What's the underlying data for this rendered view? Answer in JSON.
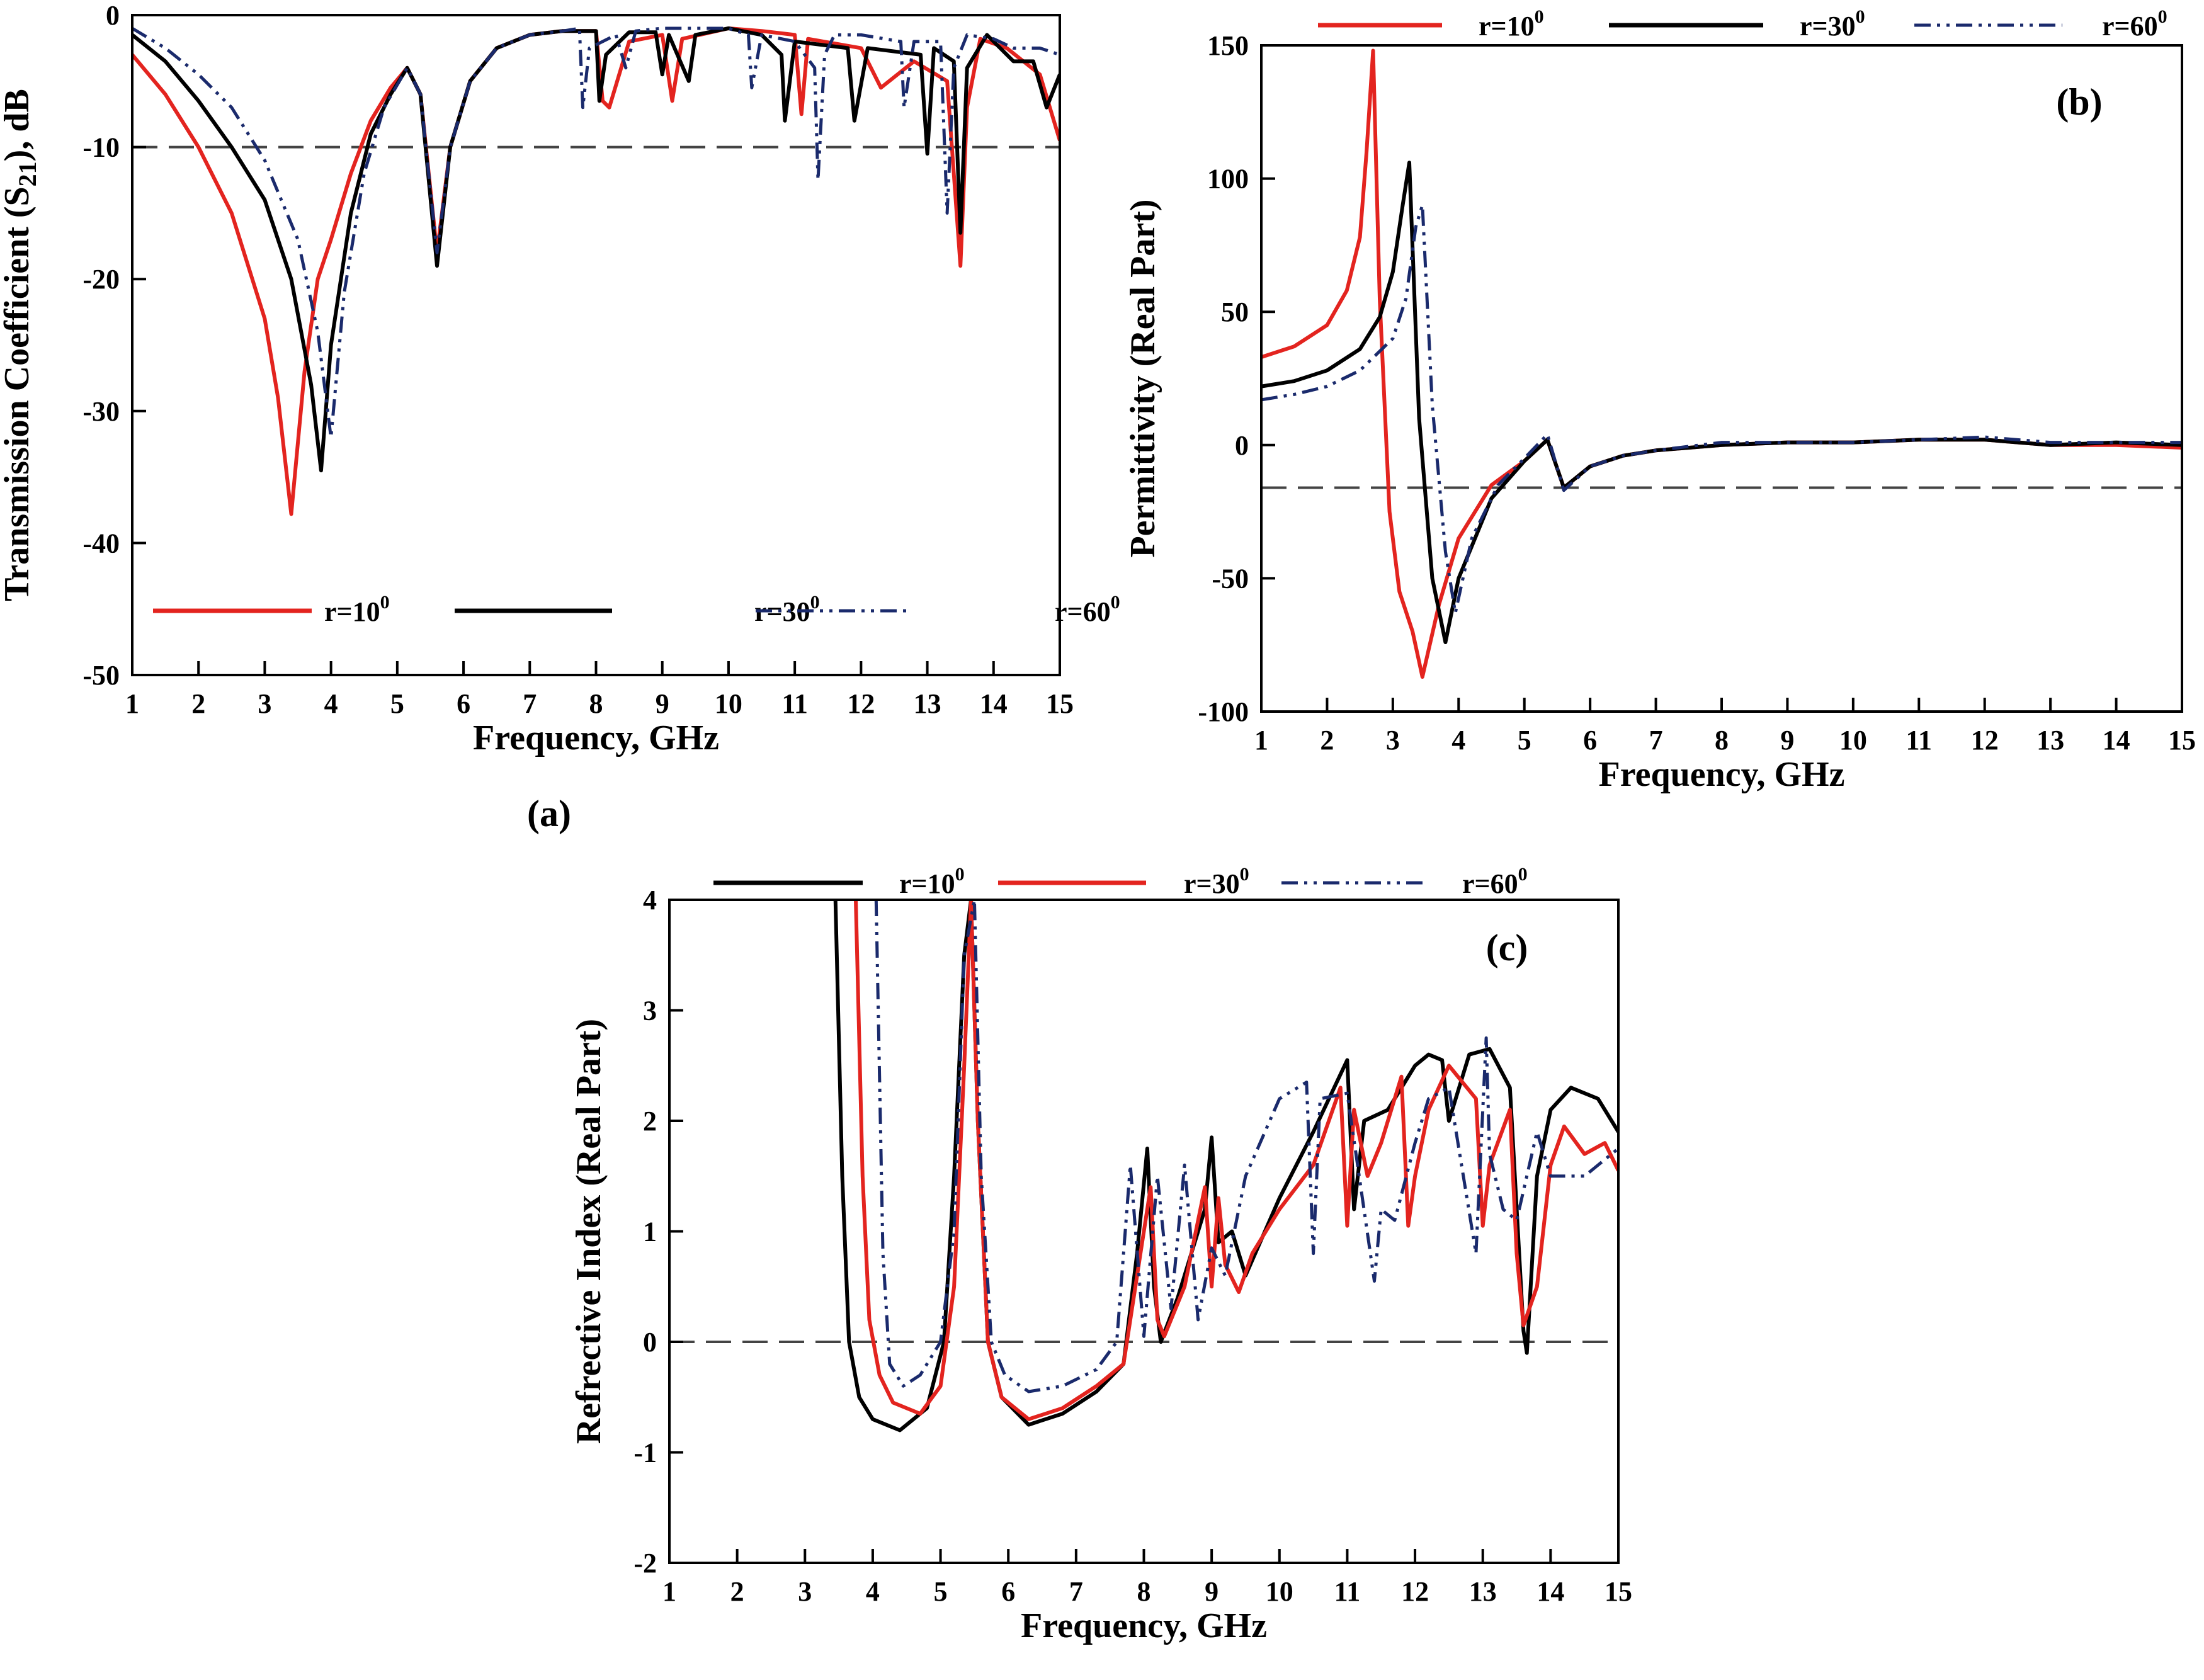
{
  "chart_data": [
    {
      "id": "a",
      "type": "line",
      "panel_label": "(a)",
      "xlabel": "Frequency, GHz",
      "ylabel_main": "Transmission Coefficient (S",
      "ylabel_sub": "21",
      "ylabel_tail": "), dB",
      "xlim": [
        1,
        15
      ],
      "ylim": [
        -50,
        0
      ],
      "xticks": [
        1,
        2,
        3,
        4,
        5,
        6,
        7,
        8,
        9,
        10,
        11,
        12,
        13,
        14,
        15
      ],
      "yticks": [
        0,
        -10,
        -20,
        -30,
        -40,
        -50
      ],
      "reference_line": -10,
      "legend_position": "bottom",
      "series": [
        {
          "name": "r=10",
          "sup": "0",
          "color": "#e3241f",
          "dash": "solid",
          "x": [
            1,
            1.5,
            2,
            2.5,
            3,
            3.2,
            3.4,
            3.6,
            3.8,
            4,
            4.3,
            4.6,
            4.9,
            5.15,
            5.35,
            5.6,
            5.8,
            6.1,
            6.5,
            7,
            7.5,
            8,
            8.1,
            8.2,
            8.5,
            9,
            9.15,
            9.3,
            10,
            10.5,
            11,
            11.1,
            11.2,
            12,
            12.3,
            12.8,
            13.3,
            13.5,
            13.6,
            13.8,
            14.2,
            14.7,
            15
          ],
          "y": [
            -3,
            -6,
            -10,
            -15,
            -23,
            -29,
            -37.8,
            -27,
            -20,
            -17,
            -12,
            -8,
            -5.5,
            -4,
            -6,
            -18,
            -10,
            -5,
            -2.5,
            -1.5,
            -1.2,
            -1.2,
            -6.5,
            -7,
            -2,
            -1.5,
            -6.5,
            -1.8,
            -1,
            -1.2,
            -1.5,
            -7.5,
            -1.8,
            -2.5,
            -5.5,
            -3.5,
            -5,
            -19,
            -7,
            -1.8,
            -2.5,
            -4.5,
            -9.5
          ]
        },
        {
          "name": "r=30",
          "sup": "0",
          "color": "#000000",
          "dash": "solid",
          "x": [
            1,
            1.5,
            2,
            2.5,
            3,
            3.4,
            3.7,
            3.85,
            4,
            4.3,
            4.6,
            4.9,
            5.15,
            5.35,
            5.6,
            5.8,
            6.1,
            6.5,
            7,
            7.5,
            8,
            8.05,
            8.15,
            8.5,
            8.9,
            9,
            9.1,
            9.4,
            9.5,
            10,
            10.5,
            10.8,
            10.85,
            11,
            11.8,
            11.9,
            12.1,
            12.9,
            13,
            13.1,
            13.4,
            13.5,
            13.6,
            13.9,
            14.3,
            14.6,
            14.8,
            15
          ],
          "y": [
            -1.5,
            -3.5,
            -6.5,
            -10,
            -14,
            -20,
            -28,
            -34.5,
            -25,
            -15,
            -9,
            -6,
            -4,
            -6,
            -19,
            -10,
            -5,
            -2.5,
            -1.5,
            -1.2,
            -1.2,
            -6.5,
            -3,
            -1.3,
            -1.3,
            -4.5,
            -1.5,
            -5,
            -1.5,
            -1,
            -1.5,
            -3,
            -8,
            -2,
            -2.5,
            -8,
            -2.5,
            -3,
            -10.5,
            -2.5,
            -3.5,
            -16.5,
            -4,
            -1.5,
            -3.5,
            -3.5,
            -7,
            -4.5
          ]
        },
        {
          "name": "r=60",
          "sup": "0",
          "color": "#1a2a6c",
          "dash": "dashdot",
          "x": [
            1,
            1.5,
            2,
            2.5,
            3,
            3.5,
            3.8,
            4,
            4.2,
            4.5,
            4.8,
            5.15,
            5.35,
            5.6,
            5.8,
            6.1,
            6.5,
            7,
            7.5,
            7.75,
            7.8,
            7.9,
            8.3,
            8.45,
            8.6,
            9,
            10,
            10.3,
            10.35,
            10.5,
            11,
            11.3,
            11.35,
            11.45,
            11.6,
            12,
            12.6,
            12.65,
            12.8,
            13.2,
            13.3,
            13.4,
            13.6,
            14,
            14.3,
            14.7,
            15
          ],
          "y": [
            -1,
            -2.5,
            -4.5,
            -7,
            -11,
            -17,
            -24,
            -32,
            -21,
            -12,
            -7,
            -4,
            -6,
            -18,
            -10,
            -5,
            -2.5,
            -1.5,
            -1.2,
            -1,
            -7,
            -2.5,
            -1.5,
            -4,
            -1.2,
            -1,
            -1,
            -1.5,
            -5.5,
            -1.5,
            -2,
            -4,
            -12.5,
            -3,
            -1.5,
            -1.5,
            -2,
            -7,
            -2,
            -2,
            -15,
            -4,
            -1.5,
            -1.8,
            -2.5,
            -2.5,
            -3
          ]
        }
      ]
    },
    {
      "id": "b",
      "type": "line",
      "panel_label": "(b)",
      "xlabel": "Frequency, GHz",
      "ylabel_main": "Permittivity (Real Part)",
      "xlim": [
        1,
        15
      ],
      "ylim": [
        -100,
        150
      ],
      "xticks": [
        1,
        2,
        3,
        4,
        5,
        6,
        7,
        8,
        9,
        10,
        11,
        12,
        13,
        14,
        15
      ],
      "yticks": [
        150,
        100,
        50,
        0,
        -50,
        -100
      ],
      "reference_line": -16,
      "legend_position": "top",
      "series": [
        {
          "name": "r=10",
          "sup": "0",
          "color": "#e3241f",
          "dash": "solid",
          "x": [
            1,
            1.5,
            2,
            2.3,
            2.5,
            2.6,
            2.7,
            2.8,
            2.95,
            3.1,
            3.3,
            3.45,
            3.7,
            4,
            4.5,
            5,
            5.35,
            5.6,
            6,
            6.5,
            7,
            8,
            9,
            10,
            11,
            12,
            13,
            14,
            15
          ],
          "y": [
            33,
            37,
            45,
            58,
            78,
            110,
            148,
            55,
            -25,
            -55,
            -70,
            -87,
            -60,
            -35,
            -15,
            -6,
            2,
            -16,
            -8,
            -4,
            -2,
            0,
            1,
            1,
            2,
            2,
            0,
            0,
            -1
          ]
        },
        {
          "name": "r=30",
          "sup": "0",
          "color": "#000000",
          "dash": "solid",
          "x": [
            1,
            1.5,
            2,
            2.5,
            2.8,
            3,
            3.15,
            3.25,
            3.4,
            3.6,
            3.8,
            4,
            4.5,
            5,
            5.35,
            5.6,
            6,
            6.5,
            7,
            8,
            9,
            10,
            11,
            12,
            13,
            14,
            15
          ],
          "y": [
            22,
            24,
            28,
            36,
            48,
            65,
            90,
            106,
            10,
            -50,
            -74,
            -50,
            -20,
            -6,
            2,
            -16,
            -8,
            -4,
            -2,
            0,
            1,
            1,
            2,
            2,
            0,
            1,
            0
          ]
        },
        {
          "name": "r=60",
          "sup": "0",
          "color": "#1a2a6c",
          "dash": "dashdot",
          "x": [
            1,
            1.5,
            2,
            2.5,
            3,
            3.2,
            3.35,
            3.45,
            3.6,
            3.8,
            3.95,
            4.2,
            4.6,
            5,
            5.35,
            5.6,
            6,
            6.5,
            7,
            8,
            9,
            10,
            11,
            12,
            13,
            14,
            15
          ],
          "y": [
            17,
            19,
            22,
            28,
            40,
            55,
            82,
            90,
            15,
            -40,
            -63,
            -35,
            -15,
            -5,
            4,
            -17,
            -8,
            -4,
            -2,
            1,
            1,
            1,
            2,
            3,
            1,
            1,
            1
          ]
        }
      ]
    },
    {
      "id": "c",
      "type": "line",
      "panel_label": "(c)",
      "xlabel": "Frequency, GHz",
      "ylabel_main": "Refrective Index (Real Part)",
      "xlim": [
        1,
        15
      ],
      "ylim": [
        -2,
        4
      ],
      "xticks": [
        1,
        2,
        3,
        4,
        5,
        6,
        7,
        8,
        9,
        10,
        11,
        12,
        13,
        14,
        15
      ],
      "yticks": [
        4,
        3,
        2,
        1,
        0,
        -1,
        -2
      ],
      "reference_line": 0,
      "legend_position": "top",
      "series": [
        {
          "name": "r=10",
          "sup": "0",
          "color": "#000000",
          "dash": "solid",
          "x": [
            3.45,
            3.55,
            3.65,
            3.8,
            4,
            4.4,
            4.8,
            5.05,
            5.2,
            5.35,
            5.45,
            5.55,
            5.7,
            5.9,
            6.3,
            6.8,
            7.3,
            7.7,
            7.9,
            8.05,
            8.15,
            8.25,
            8.5,
            8.9,
            9,
            9.1,
            9.3,
            9.5,
            10,
            10.5,
            11,
            11.1,
            11.25,
            11.6,
            12,
            12.2,
            12.4,
            12.5,
            12.8,
            13.1,
            13.4,
            13.6,
            13.65,
            13.8,
            14,
            14.3,
            14.7,
            15
          ],
          "y": [
            4,
            1.5,
            0,
            -0.5,
            -0.7,
            -0.8,
            -0.6,
            0,
            1.5,
            3.5,
            4,
            2,
            0,
            -0.5,
            -0.75,
            -0.65,
            -0.45,
            -0.2,
            0.8,
            1.75,
            0.5,
            0,
            0.4,
            1.2,
            1.85,
            0.9,
            1,
            0.6,
            1.3,
            1.9,
            2.55,
            1.2,
            2,
            2.1,
            2.5,
            2.6,
            2.55,
            2,
            2.6,
            2.65,
            2.3,
            0.1,
            -0.1,
            1.5,
            2.1,
            2.3,
            2.2,
            1.9
          ]
        },
        {
          "name": "r=30",
          "sup": "0",
          "color": "#e3241f",
          "dash": "solid",
          "x": [
            3.75,
            3.85,
            3.95,
            4.1,
            4.3,
            4.7,
            5,
            5.2,
            5.35,
            5.45,
            5.55,
            5.7,
            5.9,
            6.3,
            6.8,
            7.3,
            7.7,
            7.95,
            8.1,
            8.2,
            8.3,
            8.6,
            8.9,
            9,
            9.1,
            9.2,
            9.4,
            9.6,
            10,
            10.5,
            10.9,
            11,
            11.1,
            11.3,
            11.5,
            11.8,
            11.9,
            12,
            12.2,
            12.5,
            12.9,
            13,
            13.1,
            13.4,
            13.5,
            13.6,
            13.8,
            14,
            14.2,
            14.5,
            14.8,
            15
          ],
          "y": [
            4,
            1.5,
            0.2,
            -0.3,
            -0.55,
            -0.65,
            -0.4,
            0.5,
            2.5,
            4,
            2,
            0,
            -0.5,
            -0.7,
            -0.6,
            -0.4,
            -0.2,
            0.8,
            1.4,
            0.2,
            0.05,
            0.5,
            1.4,
            0.5,
            1.3,
            0.7,
            0.45,
            0.8,
            1.2,
            1.6,
            2.3,
            1.05,
            2.1,
            1.5,
            1.8,
            2.4,
            1.05,
            1.5,
            2.1,
            2.5,
            2.2,
            1.05,
            1.6,
            2.1,
            0.8,
            0.15,
            0.5,
            1.6,
            1.95,
            1.7,
            1.8,
            1.55
          ]
        },
        {
          "name": "r=60",
          "sup": "0",
          "color": "#1a2a6c",
          "dash": "dashdot",
          "x": [
            4.05,
            4.15,
            4.25,
            4.45,
            4.7,
            5,
            5.2,
            5.35,
            5.5,
            5.6,
            5.75,
            5.95,
            6.3,
            6.8,
            7.3,
            7.6,
            7.8,
            8,
            8.2,
            8.4,
            8.6,
            8.8,
            9,
            9.2,
            9.5,
            10,
            10.4,
            10.5,
            10.6,
            11,
            11.4,
            11.5,
            11.7,
            12,
            12.2,
            12.5,
            12.9,
            13.05,
            13.1,
            13.3,
            13.5,
            13.8,
            14,
            14.5,
            15
          ],
          "y": [
            4,
            0.8,
            -0.2,
            -0.4,
            -0.3,
            0,
            1,
            3.5,
            4,
            1.5,
            0,
            -0.3,
            -0.45,
            -0.4,
            -0.25,
            0,
            1.6,
            0.05,
            1.5,
            0.3,
            1.6,
            0.2,
            0.85,
            0.6,
            1.5,
            2.2,
            2.35,
            0.8,
            2.2,
            2.25,
            0.55,
            1.2,
            1.1,
            1.8,
            2.2,
            2.3,
            0.8,
            2.75,
            1.7,
            1.2,
            1.1,
            1.9,
            1.5,
            1.5,
            1.75
          ]
        }
      ]
    }
  ]
}
